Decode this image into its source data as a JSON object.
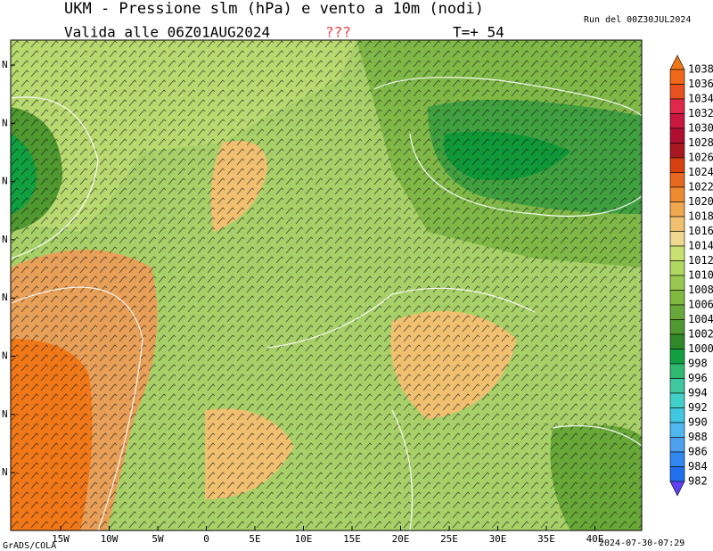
{
  "header": {
    "title": "UKM - Pressione slm (hPa) e vento a 10m (nodi)",
    "valid": "Valida alle 06Z01AUG2024",
    "flag": "???",
    "step": "T=+ 54",
    "run": "Run del 00Z30JUL2024"
  },
  "map": {
    "lon_labels": [
      "15W",
      "10W",
      "5W",
      "0",
      "5E",
      "10E",
      "15E",
      "20E",
      "25E",
      "30E",
      "35E",
      "40E"
    ],
    "lat_labels": [
      "N",
      "N",
      "N",
      "N",
      "N",
      "N",
      "N",
      "N"
    ]
  },
  "colorbar": {
    "levels": [
      1038,
      1036,
      1034,
      1032,
      1030,
      1028,
      1026,
      1024,
      1022,
      1020,
      1018,
      1016,
      1014,
      1012,
      1010,
      1008,
      1006,
      1004,
      1002,
      1000,
      998,
      996,
      994,
      992,
      990,
      988,
      986,
      984,
      982
    ],
    "colors": [
      "#f07818",
      "#f06818",
      "#e85020",
      "#e02848",
      "#c81840",
      "#b01030",
      "#a81820",
      "#d84010",
      "#e86820",
      "#f08a30",
      "#f0a850",
      "#f0c070",
      "#f0d890",
      "#c8e070",
      "#b0d860",
      "#98c850",
      "#80b840",
      "#68a838",
      "#509830",
      "#308828",
      "#10a040",
      "#30b870",
      "#40c8a0",
      "#40d0c8",
      "#40c8e0",
      "#50b8f0",
      "#50a0f0",
      "#3088f0",
      "#2070f0",
      "#6040f0"
    ]
  },
  "footer": {
    "left": "GrADS/COLA",
    "right": "2024-07-30-07:29"
  }
}
